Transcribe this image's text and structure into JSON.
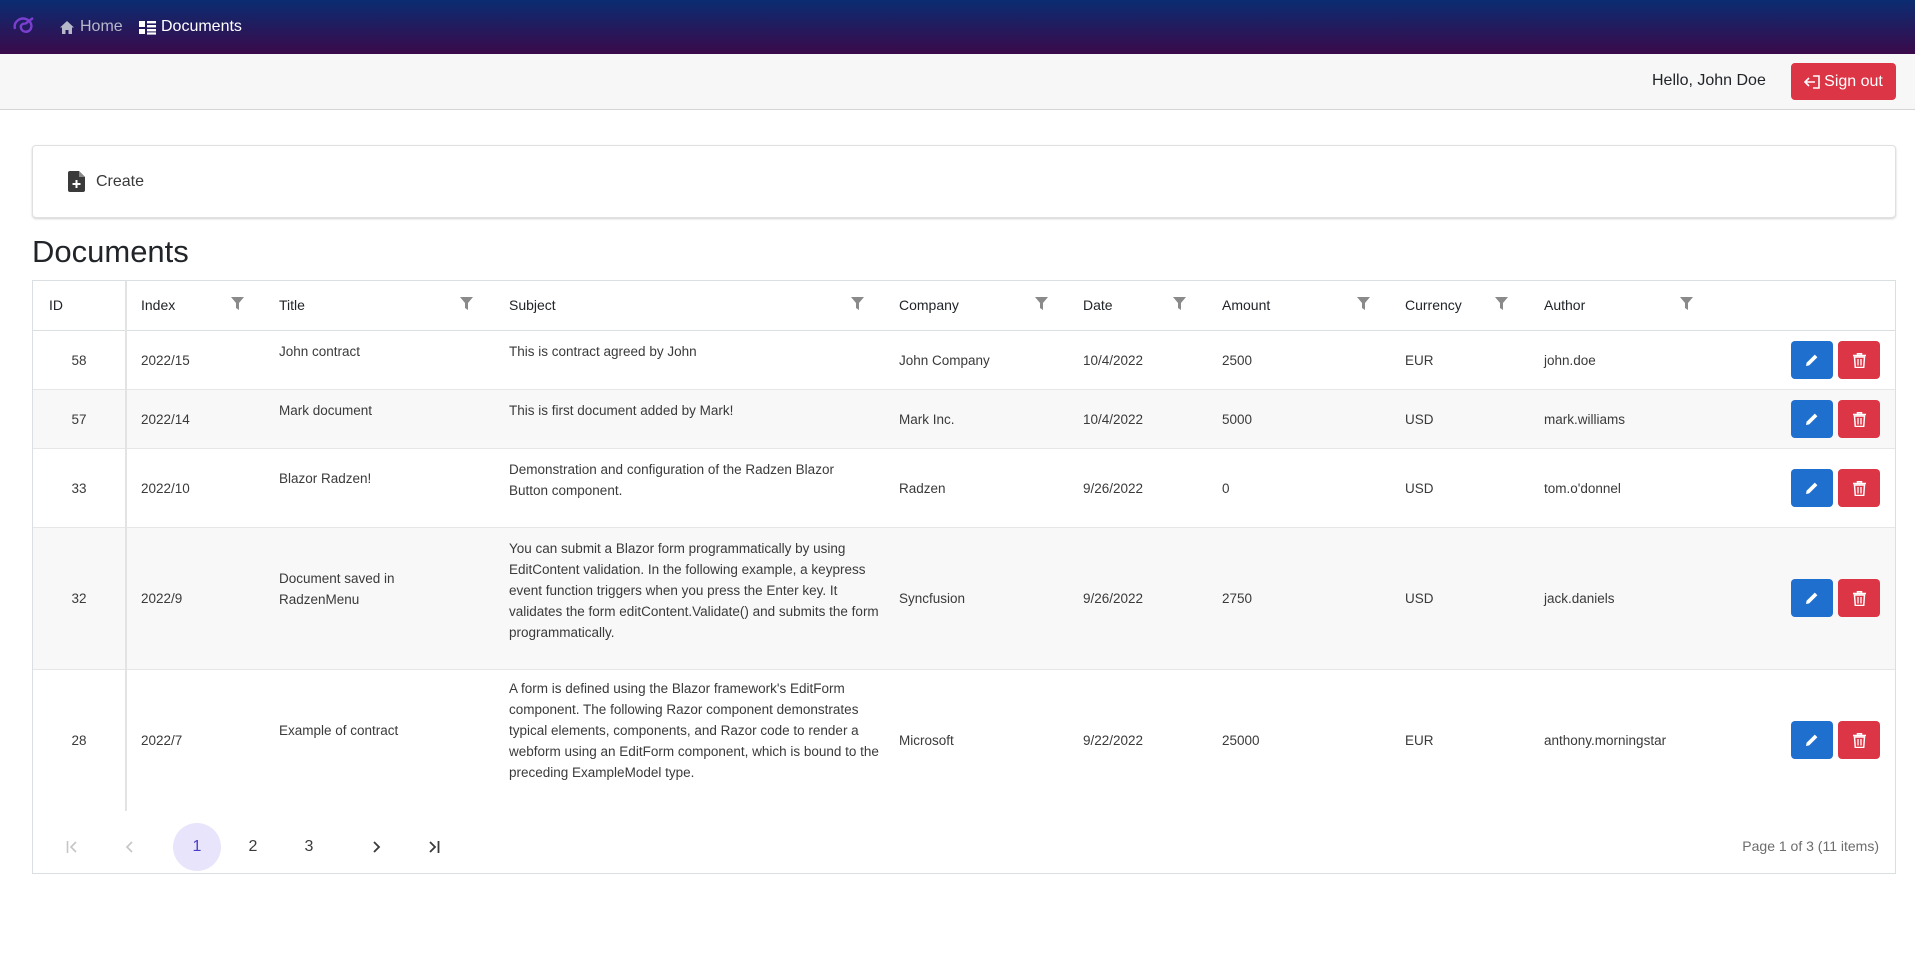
{
  "nav": {
    "home_label": "Home",
    "documents_label": "Documents"
  },
  "userbar": {
    "greeting": "Hello, John Doe",
    "signout_label": "Sign out"
  },
  "toolbar": {
    "create_label": "Create"
  },
  "page": {
    "title": "Documents"
  },
  "grid": {
    "columns": [
      "ID",
      "Index",
      "Title",
      "Subject",
      "Company",
      "Date",
      "Amount",
      "Currency",
      "Author"
    ],
    "rows": [
      {
        "id": "58",
        "index": "2022/15",
        "title": "John contract",
        "subject": "This is contract agreed by John",
        "company": "John Company",
        "date": "10/4/2022",
        "amount": "2500",
        "currency": "EUR",
        "author": "john.doe"
      },
      {
        "id": "57",
        "index": "2022/14",
        "title": "Mark document",
        "subject": "This is first document added by Mark!",
        "company": "Mark Inc.",
        "date": "10/4/2022",
        "amount": "5000",
        "currency": "USD",
        "author": "mark.williams"
      },
      {
        "id": "33",
        "index": "2022/10",
        "title": "Blazor Radzen!",
        "subject": "Demonstration and configuration of the Radzen Blazor Button component.",
        "company": "Radzen",
        "date": "9/26/2022",
        "amount": "0",
        "currency": "USD",
        "author": "tom.o'donnel"
      },
      {
        "id": "32",
        "index": "2022/9",
        "title": "Document saved in RadzenMenu",
        "subject": "You can submit a Blazor form programmatically by using EditContent validation. In the following example, a keypress event function triggers when you press the Enter key. It validates the form editContent.Validate() and submits the form programmatically.",
        "company": "Syncfusion",
        "date": "9/26/2022",
        "amount": "2750",
        "currency": "USD",
        "author": "jack.daniels"
      },
      {
        "id": "28",
        "index": "2022/7",
        "title": "Example of contract",
        "subject": "A form is defined using the Blazor framework's EditForm component. The following Razor component demonstrates typical elements, components, and Razor code to render a webform using an EditForm component, which is bound to the preceding ExampleModel type.",
        "company": "Microsoft",
        "date": "9/22/2022",
        "amount": "25000",
        "currency": "EUR",
        "author": "anthony.morningstar"
      }
    ]
  },
  "pager": {
    "pages": [
      "1",
      "2",
      "3"
    ],
    "current_page": "1",
    "summary": "Page 1 of 3 (11 items)"
  },
  "colors": {
    "nav_top": "#0b2c72",
    "nav_bottom": "#3a0a4a",
    "primary": "#1f6fcf",
    "danger": "#dc3545",
    "pager_active": "#e7e4fb"
  },
  "icons": {
    "brand": "blazor-logo-icon",
    "home": "home-icon",
    "documents": "list-icon",
    "signout": "sign-out-icon",
    "create": "file-plus-icon",
    "filter": "filter-icon",
    "edit": "pencil-icon",
    "delete": "trash-icon"
  }
}
